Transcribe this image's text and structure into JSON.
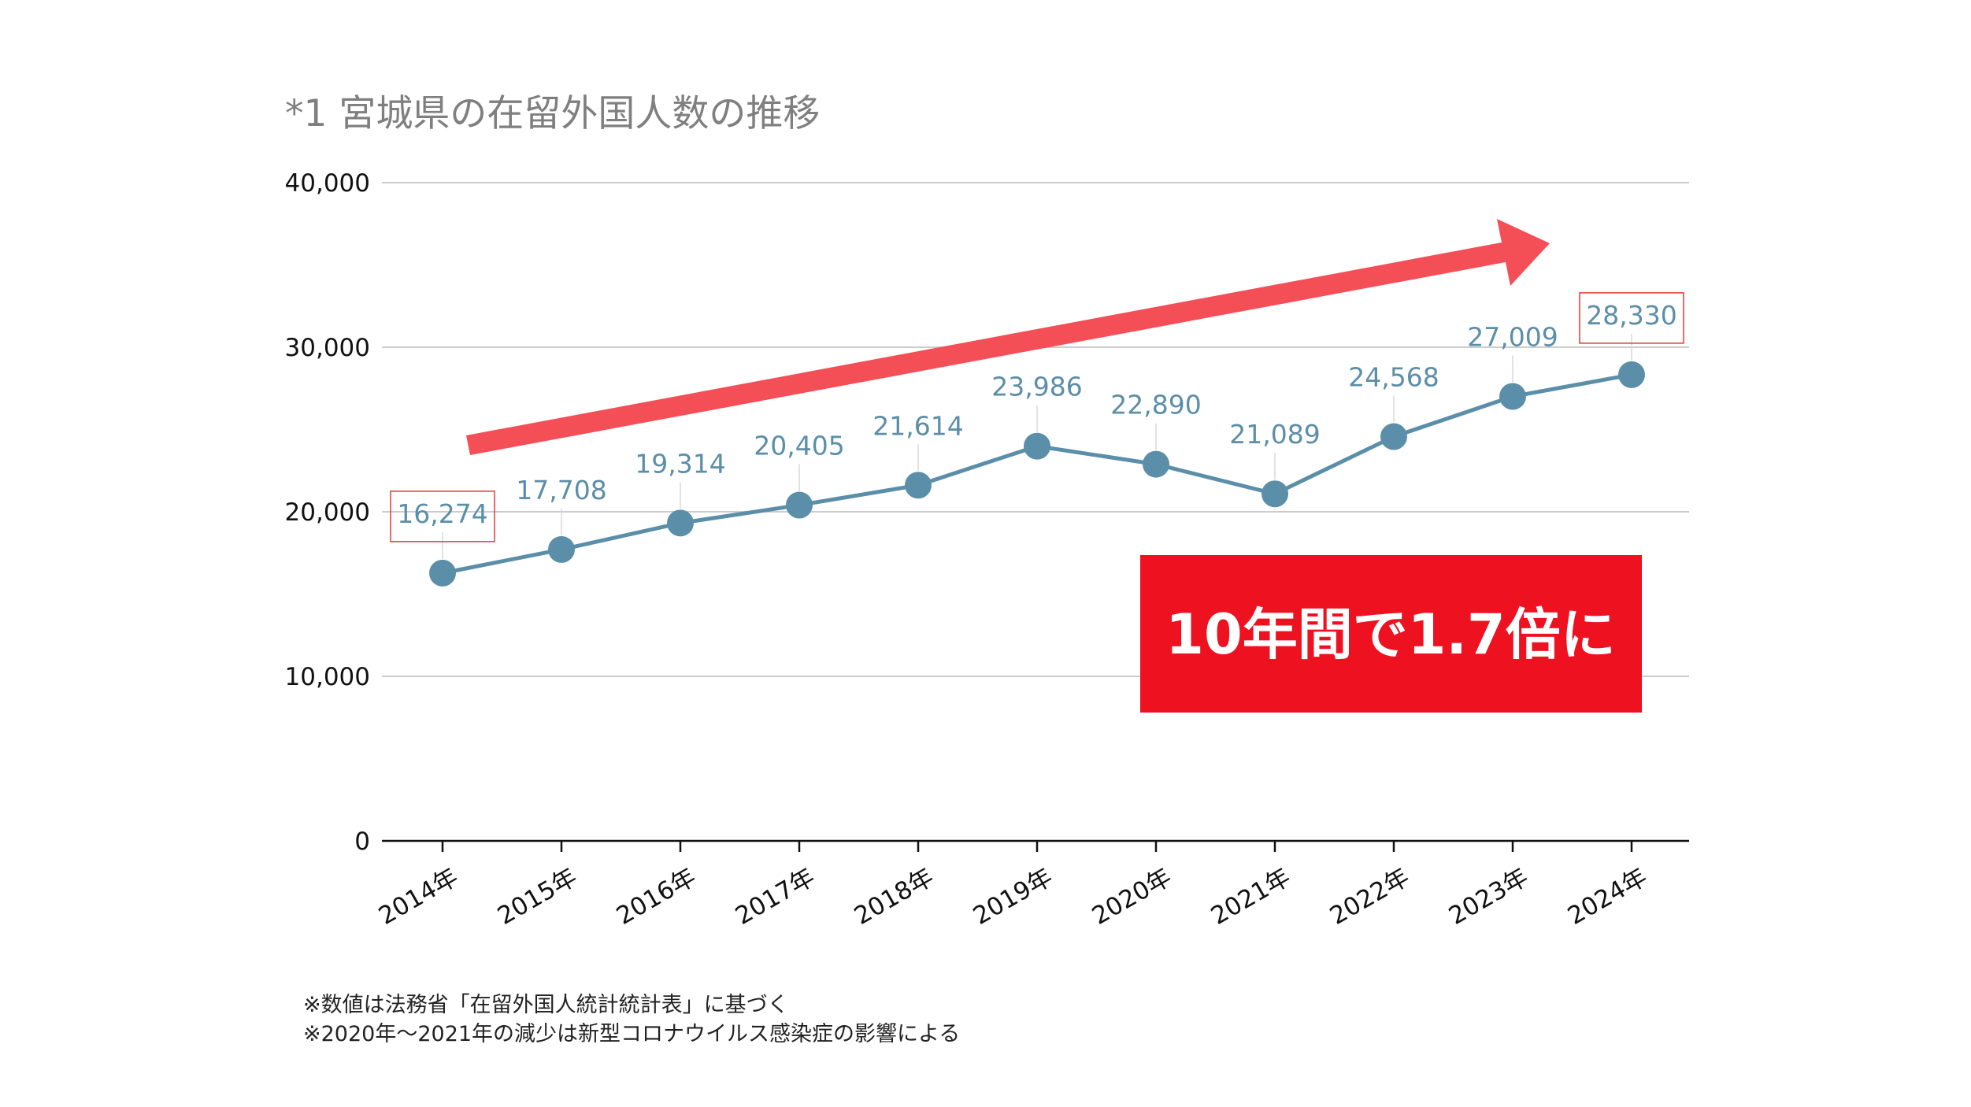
{
  "chart_data": {
    "type": "line",
    "title": "*1 宮城県の在留外国人数の推移",
    "categories": [
      "2014年",
      "2015年",
      "2016年",
      "2017年",
      "2018年",
      "2019年",
      "2020年",
      "2021年",
      "2022年",
      "2023年",
      "2024年"
    ],
    "series": [
      {
        "values": [
          16274,
          17708,
          19314,
          20405,
          21614,
          23986,
          22890,
          21089,
          24568,
          27009,
          28330
        ]
      }
    ],
    "value_labels": [
      "16,274",
      "17,708",
      "19,314",
      "20,405",
      "21,614",
      "23,986",
      "22,890",
      "21,089",
      "24,568",
      "27,009",
      "28,330"
    ],
    "yticks": [
      "0",
      "10,000",
      "20,000",
      "30,000",
      "40,000"
    ],
    "ylim": [
      0,
      40000
    ],
    "grid": true,
    "legend": "none",
    "highlighted_labels": [
      "2014年",
      "2024年"
    ],
    "callout": "10年間で1.7倍に",
    "notes": [
      "※数値は法務省「在留外国人統計統計表」に基づく",
      "※2020年〜2021年の減少は新型コロナウイルス感染症の影響による"
    ]
  },
  "colors": {
    "line": "#5b8ea8",
    "arrow": "#f44e57",
    "callout_bg": "#ee1120",
    "highlight_box": "#e53935",
    "grid": "#cccccc"
  }
}
